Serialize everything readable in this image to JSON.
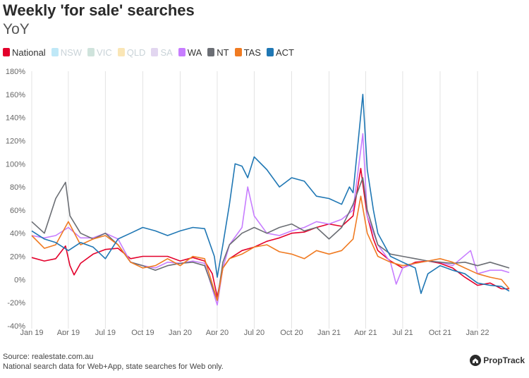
{
  "chart_data": {
    "type": "line",
    "title": "Weekly 'for sale' searches",
    "subtitle": "YoY",
    "xlabel": "",
    "ylabel": "",
    "ylim": [
      -40,
      180
    ],
    "y_ticks": [
      -40,
      -20,
      0,
      20,
      40,
      60,
      80,
      100,
      120,
      140,
      160,
      180
    ],
    "y_tick_labels": [
      "-40%",
      "-20%",
      "0%",
      "20%",
      "40%",
      "60%",
      "80%",
      "100%",
      "120%",
      "140%",
      "160%",
      "180%"
    ],
    "x_range": [
      "2019-01-01",
      "2022-03-20"
    ],
    "x_ticks": [
      "2019-01-01",
      "2019-04-01",
      "2019-07-01",
      "2019-10-01",
      "2020-01-01",
      "2020-04-01",
      "2020-07-01",
      "2020-10-01",
      "2021-01-01",
      "2021-04-01",
      "2021-07-01",
      "2021-10-01",
      "2022-01-01"
    ],
    "x_tick_labels": [
      "Jan 19",
      "Apr 19",
      "Jul 19",
      "Oct 19",
      "Jan 20",
      "Apr 20",
      "Jul 20",
      "Oct 20",
      "Jan 21",
      "Apr 21",
      "Jul 21",
      "Oct 21",
      "Jan 22"
    ],
    "grid": "vertical",
    "legend_position": "top-left",
    "series": [
      {
        "name": "National",
        "color": "#e3002b",
        "visible": true,
        "points": [
          [
            "2019-01-01",
            19
          ],
          [
            "2019-02-01",
            16
          ],
          [
            "2019-03-01",
            18
          ],
          [
            "2019-03-25",
            29
          ],
          [
            "2019-04-05",
            12
          ],
          [
            "2019-04-15",
            4
          ],
          [
            "2019-05-01",
            14
          ],
          [
            "2019-06-01",
            22
          ],
          [
            "2019-07-01",
            26
          ],
          [
            "2019-08-01",
            27
          ],
          [
            "2019-09-01",
            18
          ],
          [
            "2019-10-01",
            20
          ],
          [
            "2019-11-01",
            20
          ],
          [
            "2019-12-01",
            20
          ],
          [
            "2020-01-01",
            16
          ],
          [
            "2020-02-01",
            19
          ],
          [
            "2020-03-01",
            16
          ],
          [
            "2020-03-20",
            5
          ],
          [
            "2020-04-01",
            -15
          ],
          [
            "2020-04-15",
            10
          ],
          [
            "2020-05-01",
            18
          ],
          [
            "2020-06-01",
            25
          ],
          [
            "2020-07-01",
            28
          ],
          [
            "2020-08-01",
            33
          ],
          [
            "2020-09-01",
            36
          ],
          [
            "2020-10-01",
            40
          ],
          [
            "2020-11-01",
            41
          ],
          [
            "2020-12-01",
            45
          ],
          [
            "2021-01-01",
            48
          ],
          [
            "2021-02-01",
            46
          ],
          [
            "2021-03-01",
            55
          ],
          [
            "2021-03-20",
            96
          ],
          [
            "2021-03-28",
            75
          ],
          [
            "2021-04-05",
            55
          ],
          [
            "2021-04-20",
            35
          ],
          [
            "2021-05-01",
            25
          ],
          [
            "2021-06-01",
            16
          ],
          [
            "2021-07-01",
            10
          ],
          [
            "2021-08-01",
            15
          ],
          [
            "2021-09-01",
            16
          ],
          [
            "2021-10-01",
            14
          ],
          [
            "2021-11-01",
            10
          ],
          [
            "2021-12-01",
            2
          ],
          [
            "2022-01-01",
            -5
          ],
          [
            "2022-02-01",
            -3
          ],
          [
            "2022-03-01",
            -8
          ],
          [
            "2022-03-20",
            -8
          ]
        ]
      },
      {
        "name": "NSW",
        "color": "#bfe8f7",
        "visible": false,
        "points": []
      },
      {
        "name": "VIC",
        "color": "#cfe3dc",
        "visible": false,
        "points": []
      },
      {
        "name": "QLD",
        "color": "#fae6b6",
        "visible": false,
        "points": []
      },
      {
        "name": "SA",
        "color": "#e2d6f0",
        "visible": false,
        "points": []
      },
      {
        "name": "WA",
        "color": "#c77dff",
        "visible": true,
        "points": [
          [
            "2019-01-01",
            38
          ],
          [
            "2019-02-01",
            36
          ],
          [
            "2019-03-01",
            38
          ],
          [
            "2019-04-01",
            45
          ],
          [
            "2019-05-01",
            36
          ],
          [
            "2019-06-01",
            36
          ],
          [
            "2019-07-01",
            40
          ],
          [
            "2019-08-01",
            35
          ],
          [
            "2019-09-01",
            15
          ],
          [
            "2019-10-01",
            12
          ],
          [
            "2019-11-01",
            10
          ],
          [
            "2019-12-01",
            15
          ],
          [
            "2020-01-01",
            14
          ],
          [
            "2020-02-01",
            16
          ],
          [
            "2020-03-01",
            14
          ],
          [
            "2020-04-01",
            -22
          ],
          [
            "2020-04-15",
            10
          ],
          [
            "2020-05-01",
            30
          ],
          [
            "2020-06-01",
            45
          ],
          [
            "2020-06-15",
            80
          ],
          [
            "2020-07-01",
            55
          ],
          [
            "2020-08-01",
            40
          ],
          [
            "2020-09-01",
            38
          ],
          [
            "2020-10-01",
            42
          ],
          [
            "2020-11-01",
            45
          ],
          [
            "2020-12-01",
            50
          ],
          [
            "2021-01-01",
            48
          ],
          [
            "2021-02-01",
            52
          ],
          [
            "2021-03-01",
            60
          ],
          [
            "2021-03-25",
            126
          ],
          [
            "2021-04-05",
            55
          ],
          [
            "2021-05-01",
            30
          ],
          [
            "2021-06-01",
            15
          ],
          [
            "2021-06-15",
            -4
          ],
          [
            "2021-07-01",
            10
          ],
          [
            "2021-08-01",
            14
          ],
          [
            "2021-09-01",
            16
          ],
          [
            "2021-10-01",
            15
          ],
          [
            "2021-11-01",
            12
          ],
          [
            "2021-12-15",
            25
          ],
          [
            "2022-01-01",
            5
          ],
          [
            "2022-02-01",
            8
          ],
          [
            "2022-03-01",
            8
          ],
          [
            "2022-03-20",
            6
          ]
        ]
      },
      {
        "name": "NT",
        "color": "#6b6e74",
        "visible": true,
        "points": [
          [
            "2019-01-01",
            50
          ],
          [
            "2019-02-01",
            40
          ],
          [
            "2019-03-01",
            70
          ],
          [
            "2019-03-25",
            84
          ],
          [
            "2019-04-05",
            55
          ],
          [
            "2019-05-01",
            40
          ],
          [
            "2019-06-01",
            35
          ],
          [
            "2019-07-01",
            40
          ],
          [
            "2019-08-01",
            30
          ],
          [
            "2019-09-01",
            15
          ],
          [
            "2019-10-01",
            12
          ],
          [
            "2019-11-01",
            8
          ],
          [
            "2019-12-01",
            12
          ],
          [
            "2020-01-01",
            14
          ],
          [
            "2020-02-01",
            15
          ],
          [
            "2020-03-01",
            12
          ],
          [
            "2020-04-01",
            -18
          ],
          [
            "2020-04-15",
            15
          ],
          [
            "2020-05-01",
            30
          ],
          [
            "2020-06-01",
            40
          ],
          [
            "2020-07-01",
            45
          ],
          [
            "2020-08-01",
            40
          ],
          [
            "2020-09-01",
            45
          ],
          [
            "2020-10-01",
            48
          ],
          [
            "2020-11-01",
            42
          ],
          [
            "2020-12-01",
            45
          ],
          [
            "2021-01-01",
            35
          ],
          [
            "2021-02-01",
            45
          ],
          [
            "2021-03-01",
            65
          ],
          [
            "2021-03-25",
            88
          ],
          [
            "2021-04-05",
            60
          ],
          [
            "2021-05-01",
            30
          ],
          [
            "2021-06-01",
            22
          ],
          [
            "2021-07-01",
            20
          ],
          [
            "2021-08-01",
            18
          ],
          [
            "2021-09-01",
            16
          ],
          [
            "2021-10-01",
            15
          ],
          [
            "2021-11-01",
            14
          ],
          [
            "2021-12-01",
            15
          ],
          [
            "2022-01-01",
            12
          ],
          [
            "2022-02-01",
            15
          ],
          [
            "2022-03-01",
            12
          ],
          [
            "2022-03-20",
            10
          ]
        ]
      },
      {
        "name": "TAS",
        "color": "#f07b22",
        "visible": true,
        "points": [
          [
            "2019-01-01",
            38
          ],
          [
            "2019-02-01",
            27
          ],
          [
            "2019-03-01",
            30
          ],
          [
            "2019-04-01",
            50
          ],
          [
            "2019-05-01",
            30
          ],
          [
            "2019-06-01",
            35
          ],
          [
            "2019-07-01",
            38
          ],
          [
            "2019-08-01",
            30
          ],
          [
            "2019-09-01",
            15
          ],
          [
            "2019-10-01",
            10
          ],
          [
            "2019-11-01",
            12
          ],
          [
            "2019-12-01",
            18
          ],
          [
            "2020-01-01",
            12
          ],
          [
            "2020-02-01",
            20
          ],
          [
            "2020-03-01",
            18
          ],
          [
            "2020-04-01",
            -18
          ],
          [
            "2020-04-15",
            10
          ],
          [
            "2020-05-01",
            18
          ],
          [
            "2020-06-01",
            22
          ],
          [
            "2020-07-01",
            28
          ],
          [
            "2020-08-01",
            30
          ],
          [
            "2020-09-01",
            24
          ],
          [
            "2020-10-01",
            22
          ],
          [
            "2020-11-01",
            18
          ],
          [
            "2020-12-01",
            25
          ],
          [
            "2021-01-01",
            22
          ],
          [
            "2021-02-01",
            25
          ],
          [
            "2021-03-01",
            35
          ],
          [
            "2021-03-20",
            72
          ],
          [
            "2021-04-05",
            40
          ],
          [
            "2021-05-01",
            20
          ],
          [
            "2021-06-01",
            15
          ],
          [
            "2021-07-01",
            12
          ],
          [
            "2021-08-01",
            14
          ],
          [
            "2021-09-01",
            16
          ],
          [
            "2021-10-01",
            18
          ],
          [
            "2021-11-01",
            15
          ],
          [
            "2021-12-01",
            10
          ],
          [
            "2022-01-01",
            5
          ],
          [
            "2022-02-01",
            2
          ],
          [
            "2022-03-01",
            0
          ],
          [
            "2022-03-20",
            -8
          ]
        ]
      },
      {
        "name": "ACT",
        "color": "#1f77b4",
        "visible": true,
        "points": [
          [
            "2019-01-01",
            42
          ],
          [
            "2019-02-01",
            35
          ],
          [
            "2019-03-01",
            32
          ],
          [
            "2019-04-01",
            25
          ],
          [
            "2019-05-01",
            32
          ],
          [
            "2019-06-01",
            28
          ],
          [
            "2019-07-01",
            18
          ],
          [
            "2019-08-01",
            35
          ],
          [
            "2019-09-01",
            40
          ],
          [
            "2019-10-01",
            45
          ],
          [
            "2019-11-01",
            42
          ],
          [
            "2019-12-01",
            38
          ],
          [
            "2020-01-01",
            42
          ],
          [
            "2020-02-01",
            45
          ],
          [
            "2020-03-01",
            44
          ],
          [
            "2020-03-25",
            20
          ],
          [
            "2020-04-01",
            2
          ],
          [
            "2020-04-15",
            30
          ],
          [
            "2020-05-01",
            65
          ],
          [
            "2020-05-15",
            100
          ],
          [
            "2020-06-01",
            98
          ],
          [
            "2020-06-15",
            88
          ],
          [
            "2020-07-01",
            106
          ],
          [
            "2020-08-01",
            95
          ],
          [
            "2020-09-01",
            80
          ],
          [
            "2020-10-01",
            88
          ],
          [
            "2020-11-01",
            85
          ],
          [
            "2020-12-01",
            72
          ],
          [
            "2021-01-01",
            70
          ],
          [
            "2021-02-01",
            65
          ],
          [
            "2021-02-20",
            80
          ],
          [
            "2021-03-01",
            75
          ],
          [
            "2021-03-25",
            160
          ],
          [
            "2021-04-05",
            95
          ],
          [
            "2021-04-20",
            60
          ],
          [
            "2021-05-01",
            40
          ],
          [
            "2021-06-01",
            20
          ],
          [
            "2021-07-01",
            15
          ],
          [
            "2021-08-01",
            10
          ],
          [
            "2021-08-15",
            -12
          ],
          [
            "2021-09-01",
            5
          ],
          [
            "2021-10-01",
            12
          ],
          [
            "2021-11-01",
            8
          ],
          [
            "2021-12-01",
            5
          ],
          [
            "2022-01-01",
            -3
          ],
          [
            "2022-02-01",
            -5
          ],
          [
            "2022-03-01",
            -6
          ],
          [
            "2022-03-20",
            -10
          ]
        ]
      }
    ]
  },
  "footer": {
    "source": "Source: realestate.com.au",
    "note": "National search data for Web+App, state searches for Web only."
  },
  "brand": {
    "name": "PropTrack",
    "icon": "house-icon"
  }
}
